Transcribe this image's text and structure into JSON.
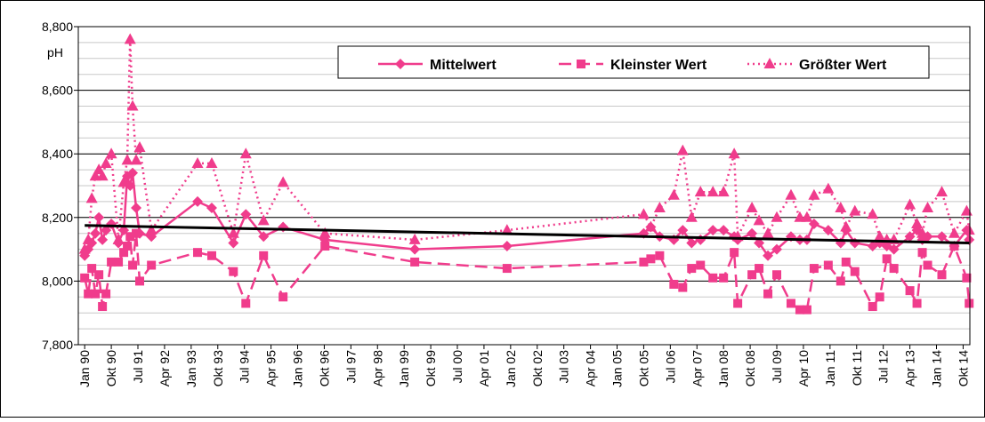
{
  "chart_data": {
    "type": "line",
    "y_label": "pH",
    "xlim": [
      1989.82,
      2014.94
    ],
    "xticks": [
      {
        "value": 1990,
        "label": "Jan 90"
      },
      {
        "value": 1990.75,
        "label": "Okt 90"
      },
      {
        "value": 1991.5,
        "label": "Jul 91"
      },
      {
        "value": 1992.25,
        "label": "Apr 92"
      },
      {
        "value": 1993,
        "label": "Jan 93"
      },
      {
        "value": 1993.75,
        "label": "Okt 93"
      },
      {
        "value": 1994.5,
        "label": "Jul 94"
      },
      {
        "value": 1995.25,
        "label": "Apr 95"
      },
      {
        "value": 1996,
        "label": "Jan 96"
      },
      {
        "value": 1996.75,
        "label": "Okt 96"
      },
      {
        "value": 1997.5,
        "label": "Jul 97"
      },
      {
        "value": 1998.25,
        "label": "Apr 98"
      },
      {
        "value": 1999,
        "label": "Jan 99"
      },
      {
        "value": 1999.75,
        "label": "Okt 99"
      },
      {
        "value": 2000.5,
        "label": "Jul 00"
      },
      {
        "value": 2001.25,
        "label": "Apr 01"
      },
      {
        "value": 2002,
        "label": "Jan 02"
      },
      {
        "value": 2002.75,
        "label": "Okt 02"
      },
      {
        "value": 2003.5,
        "label": "Jul 03"
      },
      {
        "value": 2004.25,
        "label": "Apr 04"
      },
      {
        "value": 2005,
        "label": "Jan 05"
      },
      {
        "value": 2005.75,
        "label": "Okt 05"
      },
      {
        "value": 2006.5,
        "label": "Jul 06"
      },
      {
        "value": 2007.25,
        "label": "Apr 07"
      },
      {
        "value": 2008,
        "label": "Jan 08"
      },
      {
        "value": 2008.75,
        "label": "Okt 08"
      },
      {
        "value": 2009.5,
        "label": "Jul 09"
      },
      {
        "value": 2010.25,
        "label": "Apr 10"
      },
      {
        "value": 2011,
        "label": "Jan 11"
      },
      {
        "value": 2011.75,
        "label": "Okt 11"
      },
      {
        "value": 2012.5,
        "label": "Jul 12"
      },
      {
        "value": 2013.25,
        "label": "Apr 13"
      },
      {
        "value": 2014,
        "label": "Jan 14"
      },
      {
        "value": 2014.75,
        "label": "Okt 14"
      }
    ],
    "ylim": [
      7800,
      8800
    ],
    "yticks": [
      {
        "value": 7800,
        "label": "7,800"
      },
      {
        "value": 8000,
        "label": "8,000"
      },
      {
        "value": 8200,
        "label": "8,200"
      },
      {
        "value": 8400,
        "label": "8,400"
      },
      {
        "value": 8600,
        "label": "8,600"
      },
      {
        "value": 8800,
        "label": "8,800"
      }
    ],
    "grid": true,
    "minor_grid_step": 50,
    "legend": "upper right",
    "x": [
      1990.0,
      1990.1,
      1990.2,
      1990.3,
      1990.4,
      1990.5,
      1990.6,
      1990.75,
      1990.95,
      1991.1,
      1991.2,
      1991.28,
      1991.35,
      1991.45,
      1991.55,
      1991.88,
      1993.18,
      1993.58,
      1994.19,
      1994.54,
      1995.04,
      1995.59,
      1996.77,
      1999.3,
      2001.9,
      2005.75,
      2005.95,
      2006.2,
      2006.6,
      2006.85,
      2007.1,
      2007.35,
      2007.7,
      2008.0,
      2008.3,
      2008.4,
      2008.8,
      2009.0,
      2009.25,
      2009.5,
      2009.9,
      2010.15,
      2010.35,
      2010.55,
      2010.95,
      2011.3,
      2011.45,
      2011.7,
      2012.2,
      2012.4,
      2012.6,
      2012.8,
      2013.25,
      2013.45,
      2013.6,
      2013.75,
      2014.15,
      2014.5,
      2014.85,
      2014.92
    ],
    "series": [
      {
        "name": "Mittelwert",
        "color": "#f03c8c",
        "linestyle": "solid",
        "marker": "diamond",
        "values": [
          8080,
          8100,
          8120,
          8150,
          8200,
          8130,
          8160,
          8180,
          8120,
          8160,
          8330,
          8300,
          8340,
          8230,
          8150,
          8140,
          8250,
          8230,
          8120,
          8210,
          8140,
          8170,
          8130,
          8100,
          8110,
          8150,
          8170,
          8140,
          8130,
          8160,
          8120,
          8130,
          8160,
          8160,
          8140,
          8130,
          8150,
          8120,
          8080,
          8100,
          8140,
          8130,
          8130,
          8180,
          8160,
          8120,
          8160,
          8120,
          8110,
          8120,
          8110,
          8100,
          8140,
          8160,
          8130,
          8140,
          8140,
          8110,
          8160,
          8130
        ]
      },
      {
        "name": "Kleinster Wert",
        "color": "#f03c8c",
        "linestyle": "dashed",
        "marker": "square",
        "values": [
          8010,
          7960,
          8040,
          7960,
          8020,
          7920,
          7960,
          8060,
          8060,
          8090,
          8110,
          8140,
          8050,
          8150,
          8000,
          8050,
          8090,
          8080,
          8030,
          7930,
          8080,
          7950,
          8110,
          8060,
          8040,
          8060,
          8070,
          8080,
          7990,
          7980,
          8040,
          8050,
          8010,
          8010,
          8090,
          7930,
          8020,
          8040,
          7960,
          8020,
          7930,
          7910,
          7910,
          8040,
          8050,
          8000,
          8060,
          8030,
          7920,
          7950,
          8070,
          8040,
          7970,
          7930,
          8090,
          8050,
          8020,
          8110,
          8010,
          7930
        ]
      },
      {
        "name": "Größter Wert",
        "color": "#f03c8c",
        "linestyle": "dotted",
        "marker": "triangle",
        "values": [
          8100,
          8130,
          8260,
          8330,
          8350,
          8330,
          8370,
          8400,
          8130,
          8310,
          8380,
          8760,
          8550,
          8380,
          8420,
          8160,
          8370,
          8370,
          8150,
          8400,
          8190,
          8310,
          8150,
          8130,
          8160,
          8210,
          8170,
          8230,
          8270,
          8410,
          8200,
          8280,
          8280,
          8280,
          8400,
          8140,
          8230,
          8190,
          8150,
          8200,
          8270,
          8200,
          8200,
          8270,
          8290,
          8230,
          8170,
          8220,
          8210,
          8140,
          8130,
          8130,
          8240,
          8180,
          8150,
          8230,
          8280,
          8150,
          8220,
          8160
        ]
      }
    ],
    "trend": {
      "color": "#000000",
      "x": [
        1990.0,
        2014.92
      ],
      "values": [
        8175,
        8120
      ]
    }
  }
}
